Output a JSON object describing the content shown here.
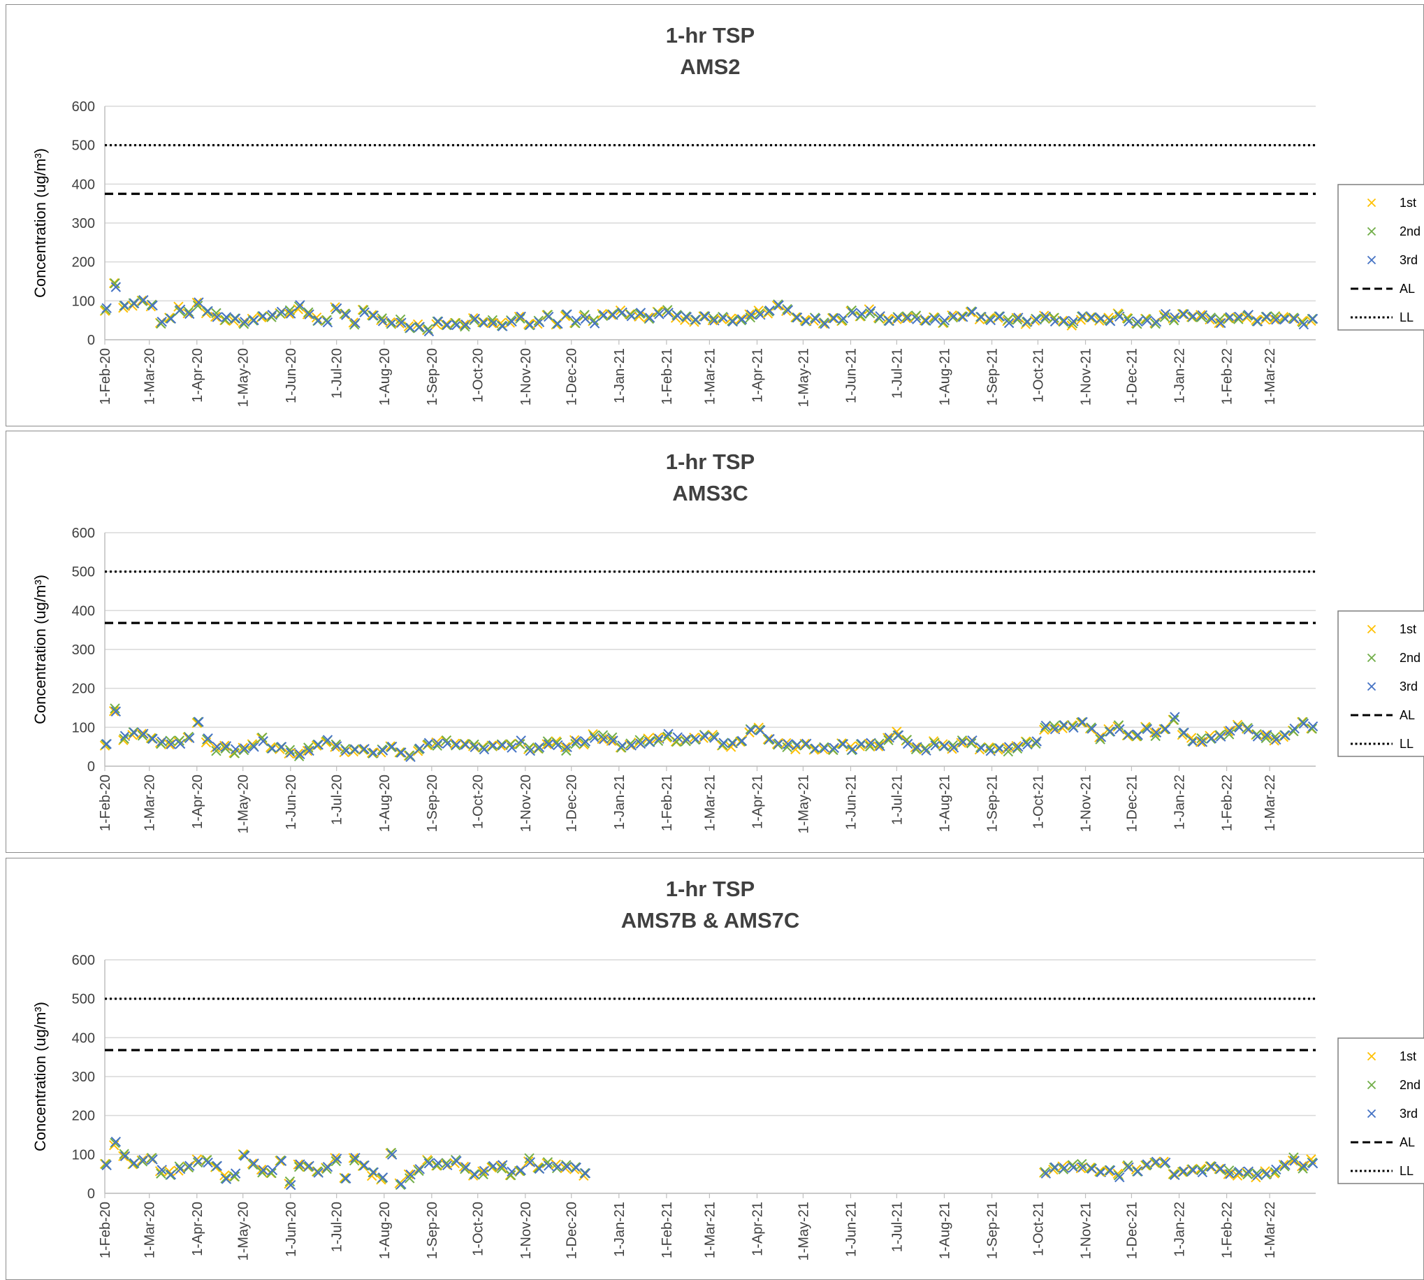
{
  "chart_data": [
    {
      "type": "scatter",
      "title": "1-hr TSP",
      "subtitle": "AMS2",
      "ylabel": "Concentration (ug/m³)",
      "ylim": [
        0,
        600
      ],
      "yticks": [
        0,
        100,
        200,
        300,
        400,
        500,
        600
      ],
      "xlim": [
        "2020-02-01",
        "2022-03-31"
      ],
      "xticks": [
        {
          "date": "2020-02-01",
          "label": "1-Feb-20"
        },
        {
          "date": "2020-03-01",
          "label": "1-Mar-20"
        },
        {
          "date": "2020-04-01",
          "label": "1-Apr-20"
        },
        {
          "date": "2020-05-01",
          "label": "1-May-20"
        },
        {
          "date": "2020-06-01",
          "label": "1-Jun-20"
        },
        {
          "date": "2020-07-01",
          "label": "1-Jul-20"
        },
        {
          "date": "2020-08-01",
          "label": "1-Aug-20"
        },
        {
          "date": "2020-09-01",
          "label": "1-Sep-20"
        },
        {
          "date": "2020-10-01",
          "label": "1-Oct-20"
        },
        {
          "date": "2020-11-01",
          "label": "1-Nov-20"
        },
        {
          "date": "2020-12-01",
          "label": "1-Dec-20"
        },
        {
          "date": "2021-01-01",
          "label": "1-Jan-21"
        },
        {
          "date": "2021-02-01",
          "label": "1-Feb-21"
        },
        {
          "date": "2021-03-01",
          "label": "1-Mar-21"
        },
        {
          "date": "2021-04-01",
          "label": "1-Apr-21"
        },
        {
          "date": "2021-05-01",
          "label": "1-May-21"
        },
        {
          "date": "2021-06-01",
          "label": "1-Jun-21"
        },
        {
          "date": "2021-07-01",
          "label": "1-Jul-21"
        },
        {
          "date": "2021-08-01",
          "label": "1-Aug-21"
        },
        {
          "date": "2021-09-01",
          "label": "1-Sep-21"
        },
        {
          "date": "2021-10-01",
          "label": "1-Oct-21"
        },
        {
          "date": "2021-11-01",
          "label": "1-Nov-21"
        },
        {
          "date": "2021-12-01",
          "label": "1-Dec-21"
        },
        {
          "date": "2022-01-01",
          "label": "1-Jan-22"
        },
        {
          "date": "2022-02-01",
          "label": "1-Feb-22"
        },
        {
          "date": "2022-03-01",
          "label": "1-Mar-22"
        }
      ],
      "grid": true,
      "legend_position": "right",
      "sampling": {
        "start": "2020-02-01",
        "end": "2022-03-30",
        "interval_days": 6
      },
      "series": [
        {
          "name": "1st",
          "marker": "x",
          "color": "#ffc000"
        },
        {
          "name": "2nd",
          "marker": "x",
          "color": "#70ad47"
        },
        {
          "name": "3rd",
          "marker": "x",
          "color": "#4472c4"
        }
      ],
      "profile": [
        [
          "2020-02-01",
          85
        ],
        [
          "2020-02-05",
          175
        ],
        [
          "2020-02-11",
          70
        ],
        [
          "2020-02-15",
          110
        ],
        [
          "2020-02-21",
          65
        ],
        [
          "2020-02-25",
          110
        ],
        [
          "2020-03-08",
          55
        ],
        [
          "2020-04-01",
          90
        ],
        [
          "2020-04-15",
          60
        ],
        [
          "2020-05-01",
          35
        ],
        [
          "2020-05-20",
          70
        ],
        [
          "2020-06-01",
          60
        ],
        [
          "2020-06-10",
          85
        ],
        [
          "2020-06-20",
          40
        ],
        [
          "2020-07-01",
          90
        ],
        [
          "2020-07-10",
          30
        ],
        [
          "2020-07-20",
          80
        ],
        [
          "2020-08-01",
          40
        ],
        [
          "2020-08-10",
          60
        ],
        [
          "2020-08-20",
          25
        ],
        [
          "2020-09-10",
          45
        ],
        [
          "2020-11-01",
          45
        ],
        [
          "2021-01-01",
          60
        ],
        [
          "2021-02-01",
          65
        ],
        [
          "2021-03-01",
          50
        ],
        [
          "2021-04-01",
          65
        ],
        [
          "2021-04-20",
          85
        ],
        [
          "2021-05-01",
          40
        ],
        [
          "2021-06-01",
          65
        ],
        [
          "2021-07-01",
          60
        ],
        [
          "2021-08-01",
          55
        ],
        [
          "2021-08-20",
          65
        ],
        [
          "2021-09-01",
          50
        ],
        [
          "2021-09-20",
          40
        ],
        [
          "2021-10-01",
          50
        ],
        [
          "2021-11-01",
          50
        ],
        [
          "2021-12-01",
          60
        ],
        [
          "2021-12-10",
          40
        ],
        [
          "2022-01-01",
          60
        ],
        [
          "2022-02-01",
          55
        ],
        [
          "2022-03-01",
          50
        ],
        [
          "2022-03-30",
          45
        ]
      ],
      "gaps": [],
      "reference_lines": [
        {
          "name": "AL",
          "value": 375,
          "style": "dashed"
        },
        {
          "name": "LL",
          "value": 500,
          "style": "dotted"
        }
      ]
    },
    {
      "type": "scatter",
      "title": "1-hr TSP",
      "subtitle": "AMS3C",
      "ylabel": "Concentration (ug/m³)",
      "ylim": [
        0,
        600
      ],
      "yticks": [
        0,
        100,
        200,
        300,
        400,
        500,
        600
      ],
      "xlim": [
        "2020-02-01",
        "2022-03-31"
      ],
      "xticks": [
        {
          "date": "2020-02-01",
          "label": "1-Feb-20"
        },
        {
          "date": "2020-03-01",
          "label": "1-Mar-20"
        },
        {
          "date": "2020-04-01",
          "label": "1-Apr-20"
        },
        {
          "date": "2020-05-01",
          "label": "1-May-20"
        },
        {
          "date": "2020-06-01",
          "label": "1-Jun-20"
        },
        {
          "date": "2020-07-01",
          "label": "1-Jul-20"
        },
        {
          "date": "2020-08-01",
          "label": "1-Aug-20"
        },
        {
          "date": "2020-09-01",
          "label": "1-Sep-20"
        },
        {
          "date": "2020-10-01",
          "label": "1-Oct-20"
        },
        {
          "date": "2020-11-01",
          "label": "1-Nov-20"
        },
        {
          "date": "2020-12-01",
          "label": "1-Dec-20"
        },
        {
          "date": "2021-01-01",
          "label": "1-Jan-21"
        },
        {
          "date": "2021-02-01",
          "label": "1-Feb-21"
        },
        {
          "date": "2021-03-01",
          "label": "1-Mar-21"
        },
        {
          "date": "2021-04-01",
          "label": "1-Apr-21"
        },
        {
          "date": "2021-05-01",
          "label": "1-May-21"
        },
        {
          "date": "2021-06-01",
          "label": "1-Jun-21"
        },
        {
          "date": "2021-07-01",
          "label": "1-Jul-21"
        },
        {
          "date": "2021-08-01",
          "label": "1-Aug-21"
        },
        {
          "date": "2021-09-01",
          "label": "1-Sep-21"
        },
        {
          "date": "2021-10-01",
          "label": "1-Oct-21"
        },
        {
          "date": "2021-11-01",
          "label": "1-Nov-21"
        },
        {
          "date": "2021-12-01",
          "label": "1-Dec-21"
        },
        {
          "date": "2022-01-01",
          "label": "1-Jan-22"
        },
        {
          "date": "2022-02-01",
          "label": "1-Feb-22"
        },
        {
          "date": "2022-03-01",
          "label": "1-Mar-22"
        }
      ],
      "grid": true,
      "legend_position": "right",
      "sampling": {
        "start": "2020-02-01",
        "end": "2022-03-30",
        "interval_days": 6
      },
      "series": [
        {
          "name": "1st",
          "marker": "x",
          "color": "#ffc000"
        },
        {
          "name": "2nd",
          "marker": "x",
          "color": "#70ad47"
        },
        {
          "name": "3rd",
          "marker": "x",
          "color": "#4472c4"
        }
      ],
      "profile": [
        [
          "2020-02-01",
          65
        ],
        [
          "2020-02-05",
          175
        ],
        [
          "2020-02-11",
          70
        ],
        [
          "2020-02-15",
          85
        ],
        [
          "2020-02-21",
          70
        ],
        [
          "2020-02-28",
          105
        ],
        [
          "2020-03-05",
          50
        ],
        [
          "2020-03-20",
          60
        ],
        [
          "2020-04-01",
          105
        ],
        [
          "2020-04-10",
          55
        ],
        [
          "2020-05-01",
          45
        ],
        [
          "2020-05-10",
          65
        ],
        [
          "2020-06-01",
          30
        ],
        [
          "2020-07-01",
          60
        ],
        [
          "2020-07-10",
          35
        ],
        [
          "2020-08-01",
          30
        ],
        [
          "2020-08-05",
          60
        ],
        [
          "2020-08-12",
          25
        ],
        [
          "2020-09-01",
          60
        ],
        [
          "2020-10-01",
          50
        ],
        [
          "2020-12-01",
          55
        ],
        [
          "2020-12-20",
          75
        ],
        [
          "2021-01-01",
          60
        ],
        [
          "2021-02-01",
          70
        ],
        [
          "2021-03-01",
          85
        ],
        [
          "2021-03-10",
          55
        ],
        [
          "2021-04-01",
          95
        ],
        [
          "2021-04-10",
          55
        ],
        [
          "2021-05-01",
          60
        ],
        [
          "2021-05-10",
          45
        ],
        [
          "2021-06-01",
          50
        ],
        [
          "2021-07-01",
          75
        ],
        [
          "2021-07-10",
          45
        ],
        [
          "2021-08-01",
          60
        ],
        [
          "2021-09-01",
          50
        ],
        [
          "2021-10-01",
          55
        ],
        [
          "2021-10-05",
          90
        ],
        [
          "2021-11-01",
          110
        ],
        [
          "2021-11-10",
          75
        ],
        [
          "2021-11-20",
          95
        ],
        [
          "2021-12-01",
          75
        ],
        [
          "2021-12-10",
          100
        ],
        [
          "2021-12-20",
          85
        ],
        [
          "2021-12-28",
          125
        ],
        [
          "2022-01-01",
          80
        ],
        [
          "2022-01-10",
          70
        ],
        [
          "2022-02-01",
          85
        ],
        [
          "2022-02-10",
          100
        ],
        [
          "2022-03-01",
          65
        ],
        [
          "2022-03-10",
          90
        ],
        [
          "2022-03-30",
          105
        ]
      ],
      "gaps": [],
      "reference_lines": [
        {
          "name": "AL",
          "value": 368,
          "style": "dashed"
        },
        {
          "name": "LL",
          "value": 500,
          "style": "dotted"
        }
      ]
    },
    {
      "type": "scatter",
      "title": "1-hr TSP",
      "subtitle": "AMS7B & AMS7C",
      "ylabel": "Concentration (ug/m³)",
      "ylim": [
        0,
        600
      ],
      "yticks": [
        0,
        100,
        200,
        300,
        400,
        500,
        600
      ],
      "xlim": [
        "2020-02-01",
        "2022-03-31"
      ],
      "xticks": [
        {
          "date": "2020-02-01",
          "label": "1-Feb-20"
        },
        {
          "date": "2020-03-01",
          "label": "1-Mar-20"
        },
        {
          "date": "2020-04-01",
          "label": "1-Apr-20"
        },
        {
          "date": "2020-05-01",
          "label": "1-May-20"
        },
        {
          "date": "2020-06-01",
          "label": "1-Jun-20"
        },
        {
          "date": "2020-07-01",
          "label": "1-Jul-20"
        },
        {
          "date": "2020-08-01",
          "label": "1-Aug-20"
        },
        {
          "date": "2020-09-01",
          "label": "1-Sep-20"
        },
        {
          "date": "2020-10-01",
          "label": "1-Oct-20"
        },
        {
          "date": "2020-11-01",
          "label": "1-Nov-20"
        },
        {
          "date": "2020-12-01",
          "label": "1-Dec-20"
        },
        {
          "date": "2021-01-01",
          "label": "1-Jan-21"
        },
        {
          "date": "2021-02-01",
          "label": "1-Feb-21"
        },
        {
          "date": "2021-03-01",
          "label": "1-Mar-21"
        },
        {
          "date": "2021-04-01",
          "label": "1-Apr-21"
        },
        {
          "date": "2021-05-01",
          "label": "1-May-21"
        },
        {
          "date": "2021-06-01",
          "label": "1-Jun-21"
        },
        {
          "date": "2021-07-01",
          "label": "1-Jul-21"
        },
        {
          "date": "2021-08-01",
          "label": "1-Aug-21"
        },
        {
          "date": "2021-09-01",
          "label": "1-Sep-21"
        },
        {
          "date": "2021-10-01",
          "label": "1-Oct-21"
        },
        {
          "date": "2021-11-01",
          "label": "1-Nov-21"
        },
        {
          "date": "2021-12-01",
          "label": "1-Dec-21"
        },
        {
          "date": "2022-01-01",
          "label": "1-Jan-22"
        },
        {
          "date": "2022-02-01",
          "label": "1-Feb-22"
        },
        {
          "date": "2022-03-01",
          "label": "1-Mar-22"
        }
      ],
      "grid": true,
      "legend_position": "right",
      "sampling": {
        "start": "2020-02-01",
        "end": "2022-03-30",
        "interval_days": 6
      },
      "series": [
        {
          "name": "1st",
          "marker": "x",
          "color": "#ffc000"
        },
        {
          "name": "2nd",
          "marker": "x",
          "color": "#70ad47"
        },
        {
          "name": "3rd",
          "marker": "x",
          "color": "#4472c4"
        }
      ],
      "profile": [
        [
          "2020-02-01",
          65
        ],
        [
          "2020-02-08",
          135
        ],
        [
          "2020-02-15",
          95
        ],
        [
          "2020-02-22",
          70
        ],
        [
          "2020-03-01",
          105
        ],
        [
          "2020-03-08",
          50
        ],
        [
          "2020-03-20",
          55
        ],
        [
          "2020-04-01",
          90
        ],
        [
          "2020-04-15",
          55
        ],
        [
          "2020-04-25",
          50
        ],
        [
          "2020-05-01",
          105
        ],
        [
          "2020-05-15",
          55
        ],
        [
          "2020-05-25",
          75
        ],
        [
          "2020-06-01",
          25
        ],
        [
          "2020-06-05",
          85
        ],
        [
          "2020-06-15",
          50
        ],
        [
          "2020-07-01",
          90
        ],
        [
          "2020-07-05",
          30
        ],
        [
          "2020-07-12",
          100
        ],
        [
          "2020-07-20",
          65
        ],
        [
          "2020-08-01",
          35
        ],
        [
          "2020-08-05",
          105
        ],
        [
          "2020-08-10",
          30
        ],
        [
          "2020-08-20",
          60
        ],
        [
          "2020-09-01",
          80
        ],
        [
          "2020-09-20",
          75
        ],
        [
          "2020-10-01",
          40
        ],
        [
          "2020-10-05",
          70
        ],
        [
          "2020-10-15",
          60
        ],
        [
          "2020-10-25",
          45
        ],
        [
          "2020-11-01",
          80
        ],
        [
          "2020-11-10",
          60
        ],
        [
          "2020-12-01",
          80
        ],
        [
          "2020-12-05",
          50
        ],
        [
          "2020-12-15",
          45
        ],
        [
          "2021-10-01",
          55
        ],
        [
          "2021-11-01",
          60
        ],
        [
          "2021-12-01",
          55
        ],
        [
          "2021-12-20",
          80
        ],
        [
          "2022-01-01",
          55
        ],
        [
          "2022-02-01",
          60
        ],
        [
          "2022-02-20",
          40
        ],
        [
          "2022-03-01",
          55
        ],
        [
          "2022-03-10",
          80
        ],
        [
          "2022-03-30",
          75
        ]
      ],
      "gaps": [
        [
          "2020-12-12",
          "2021-09-30"
        ]
      ],
      "reference_lines": [
        {
          "name": "AL",
          "value": 368,
          "style": "dashed"
        },
        {
          "name": "LL",
          "value": 500,
          "style": "dotted"
        }
      ]
    }
  ]
}
